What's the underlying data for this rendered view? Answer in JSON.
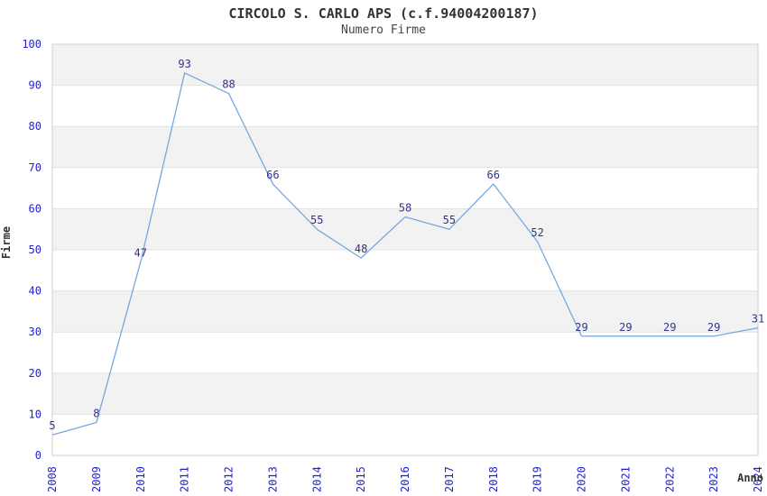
{
  "chart_data": {
    "type": "line",
    "title": "CIRCOLO S. CARLO APS (c.f.94004200187)",
    "subtitle": "Numero Firme",
    "xlabel": "Anno",
    "ylabel": "Firme",
    "categories": [
      "2008",
      "2009",
      "2010",
      "2011",
      "2012",
      "2013",
      "2014",
      "2015",
      "2016",
      "2017",
      "2018",
      "2019",
      "2020",
      "2021",
      "2022",
      "2023",
      "2024"
    ],
    "values": [
      5,
      8,
      47,
      93,
      88,
      66,
      55,
      48,
      58,
      55,
      66,
      52,
      29,
      29,
      29,
      29,
      31
    ],
    "ylim": [
      0,
      100
    ],
    "ytick_step": 10,
    "yticks": [
      0,
      10,
      20,
      30,
      40,
      50,
      60,
      70,
      80,
      90,
      100
    ],
    "grid": "alternating-horizontal-bands",
    "legend": "none",
    "colors": {
      "line": "#74a9e0",
      "point_label": "#333388",
      "tick_label": "#2222cc",
      "band": "#f2f2f2",
      "gridline": "#e2e2e2",
      "plot_border": "#d0d0d0",
      "title_text": "#333333",
      "background": "#ffffff"
    }
  }
}
